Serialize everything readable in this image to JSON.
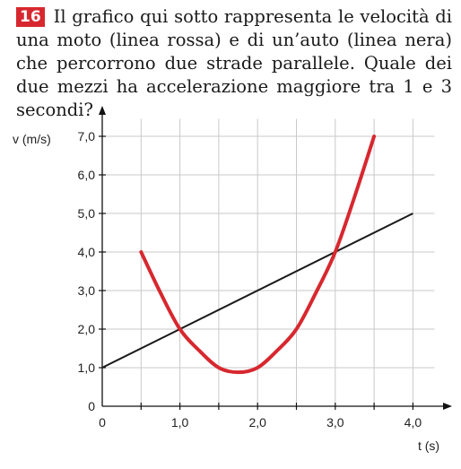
{
  "question": {
    "number": "16",
    "text": "Il grafico qui sotto rappresenta le velocità di una moto (linea rossa) e di un’auto (linea nera) che percorrono due strade parallele. Quale dei due mezzi ha accelerazione maggiore tra 1 e 3 secondi?"
  },
  "chart_data": {
    "type": "line",
    "title": "",
    "xlabel": "t (s)",
    "ylabel": "v (m/s)",
    "xlim": [
      0,
      4.2
    ],
    "ylim": [
      0,
      7.5
    ],
    "x_ticks": [
      "0",
      "1,0",
      "2,0",
      "3,0",
      "4,0"
    ],
    "y_ticks": [
      "0",
      "1,0",
      "2,0",
      "3,0",
      "4,0",
      "5,0",
      "6,0",
      "7,0"
    ],
    "grid": true,
    "series": [
      {
        "color": "#d7282f",
        "x": [
          0.5,
          0.75,
          1.0,
          1.25,
          1.5,
          1.75,
          2.0,
          2.25,
          2.5,
          2.75,
          3.0,
          3.25,
          3.5
        ],
        "y": [
          4.0,
          2.94,
          2.0,
          1.44,
          1.0,
          0.88,
          1.0,
          1.44,
          2.0,
          2.94,
          4.0,
          5.44,
          7.0
        ]
      },
      {
        "color": "#1a1a1a",
        "x": [
          0,
          4.0
        ],
        "y": [
          1.0,
          5.0
        ]
      }
    ]
  }
}
